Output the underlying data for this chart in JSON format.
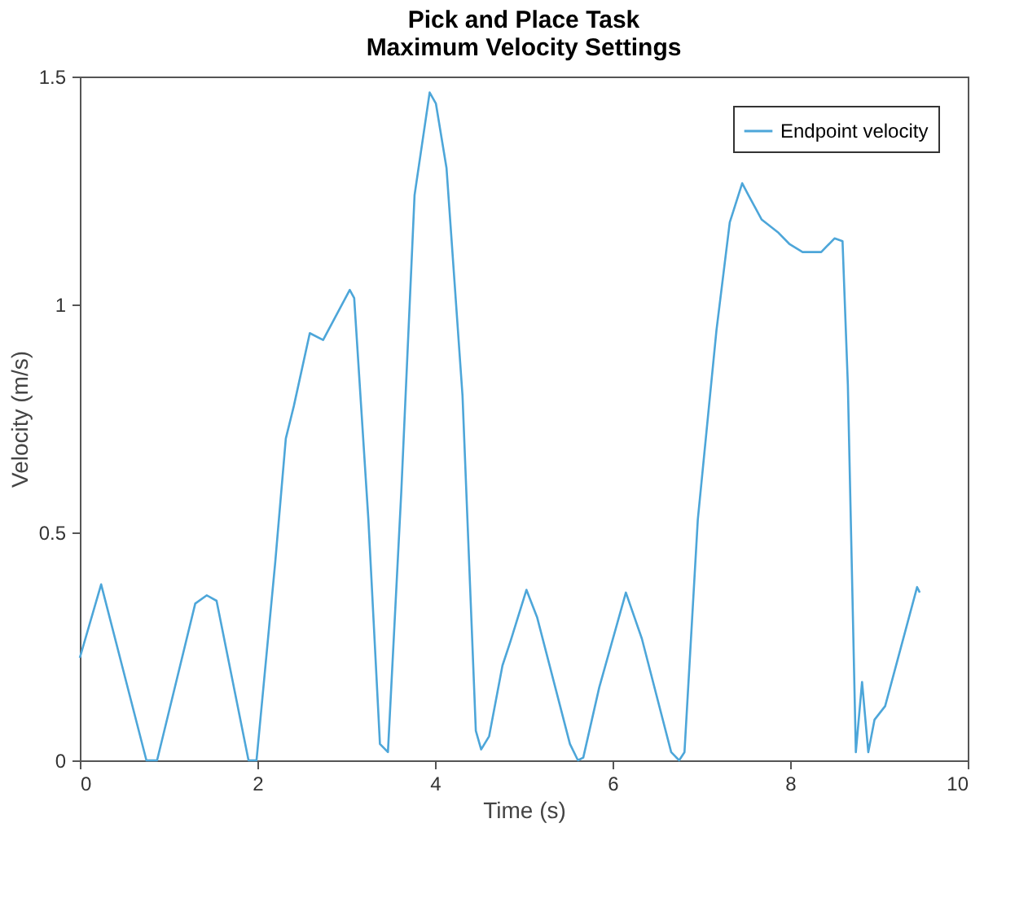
{
  "chart_data": {
    "type": "line",
    "title": [
      "Pick and Place Task",
      "Maximum Velocity Settings"
    ],
    "xlabel": "Time (s)",
    "ylabel": "Velocity (m/s)",
    "xlim": [
      0,
      10
    ],
    "xticks": [
      0,
      2,
      4,
      6,
      8,
      10
    ],
    "ylim": [
      0,
      1.5
    ],
    "yticks": [
      0,
      0.5,
      1,
      1.5
    ],
    "grid": false,
    "legend": "top right",
    "series": [
      {
        "name": "Endpoint velocity",
        "color": "#4da6d9",
        "x": [
          0,
          0.24,
          0.75,
          0.87,
          1.3,
          1.43,
          1.54,
          1.9,
          1.99,
          2.2,
          2.32,
          2.41,
          2.59,
          2.74,
          3.04,
          3.09,
          3.25,
          3.38,
          3.47,
          3.62,
          3.77,
          3.94,
          4.01,
          4.13,
          4.31,
          4.46,
          4.52,
          4.61,
          4.76,
          4.85,
          5.03,
          5.15,
          5.52,
          5.61,
          5.67,
          5.85,
          6.15,
          6.33,
          6.66,
          6.75,
          6.81,
          6.96,
          7.17,
          7.32,
          7.46,
          7.53,
          7.68,
          7.87,
          7.99,
          8.14,
          8.35,
          8.5,
          8.59,
          8.65,
          8.74,
          8.81,
          8.88,
          8.95,
          9.07,
          9.43,
          9.46
        ],
        "values": [
          0.225,
          0.386,
          0.0,
          0.0,
          0.344,
          0.362,
          0.35,
          0.0,
          0.0,
          0.433,
          0.706,
          0.777,
          0.937,
          0.922,
          1.032,
          1.014,
          0.528,
          0.036,
          0.018,
          0.587,
          1.24,
          1.465,
          1.441,
          1.299,
          0.8,
          0.065,
          0.024,
          0.053,
          0.208,
          0.261,
          0.374,
          0.314,
          0.036,
          0.0,
          0.006,
          0.16,
          0.368,
          0.267,
          0.018,
          0.0,
          0.018,
          0.528,
          0.943,
          1.18,
          1.266,
          1.24,
          1.186,
          1.157,
          1.133,
          1.115,
          1.115,
          1.145,
          1.139,
          0.824,
          0.018,
          0.172,
          0.018,
          0.089,
          0.119,
          0.38,
          0.368
        ]
      }
    ]
  }
}
